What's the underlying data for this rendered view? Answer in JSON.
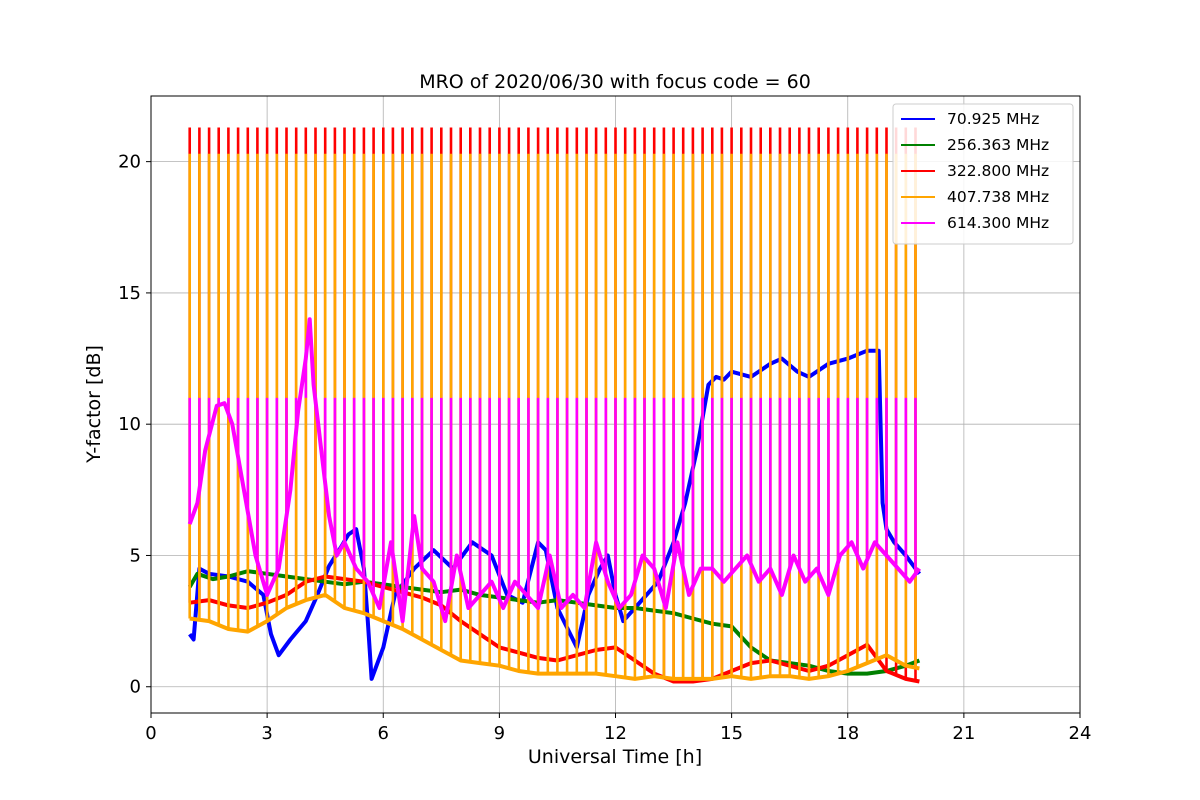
{
  "chart_data": {
    "type": "line",
    "title": "MRO of 2020/06/30 with focus code = 60",
    "xlabel": "Universal Time [h]",
    "ylabel": "Y-factor [dB]",
    "xlim": [
      0,
      24
    ],
    "ylim": [
      -1,
      22.5
    ],
    "xticks": [
      0,
      3,
      6,
      9,
      12,
      15,
      18,
      21,
      24
    ],
    "yticks": [
      0,
      5,
      10,
      15,
      20
    ],
    "grid": true,
    "legend_position": "top-right",
    "cal_spikes": {
      "start": 1.0,
      "period": 0.25,
      "end": 19.85
    },
    "series": [
      {
        "name": "70.925 MHz",
        "color": "#0000ff",
        "spike_top": null,
        "x": [
          1.0,
          1.1,
          1.25,
          1.5,
          2.0,
          2.5,
          2.9,
          3.1,
          3.3,
          3.6,
          4.0,
          4.3,
          4.6,
          4.9,
          5.1,
          5.3,
          5.5,
          5.6,
          5.7,
          5.8,
          6.0,
          6.3,
          6.8,
          7.3,
          7.8,
          8.3,
          8.8,
          9.2,
          9.6,
          10.0,
          10.2,
          10.5,
          11.0,
          11.3,
          11.6,
          11.8,
          12.0,
          12.2,
          12.5,
          12.8,
          13.1,
          13.5,
          13.8,
          14.1,
          14.4,
          14.6,
          14.8,
          15.0,
          15.5,
          16.0,
          16.3,
          16.7,
          17.0,
          17.5,
          18.0,
          18.5,
          18.8,
          18.9,
          19.0,
          19.2,
          19.5,
          19.85
        ],
        "y": [
          2.0,
          1.8,
          4.5,
          4.3,
          4.2,
          4.0,
          3.5,
          2.0,
          1.2,
          1.8,
          2.5,
          3.5,
          4.6,
          5.3,
          5.8,
          6.0,
          4.5,
          2.5,
          0.3,
          0.7,
          1.5,
          3.5,
          4.5,
          5.2,
          4.5,
          5.5,
          5.0,
          3.5,
          3.2,
          5.5,
          5.2,
          3.0,
          1.5,
          3.5,
          4.5,
          5.0,
          3.5,
          2.5,
          3.0,
          3.5,
          4.0,
          5.5,
          7.0,
          9.0,
          11.5,
          11.8,
          11.7,
          12.0,
          11.8,
          12.3,
          12.5,
          12.0,
          11.8,
          12.3,
          12.5,
          12.8,
          12.8,
          7.0,
          6.0,
          5.5,
          5.0,
          4.3
        ]
      },
      {
        "name": "256.363 MHz",
        "color": "#008000",
        "spike_top": null,
        "x": [
          1.0,
          1.2,
          1.6,
          2.0,
          2.5,
          3.0,
          3.5,
          4.0,
          4.5,
          5.0,
          5.5,
          6.0,
          6.5,
          7.0,
          7.5,
          8.0,
          8.5,
          9.0,
          9.5,
          10.0,
          10.5,
          11.0,
          11.5,
          12.0,
          12.5,
          13.0,
          13.5,
          14.0,
          14.5,
          15.0,
          15.5,
          16.0,
          16.5,
          17.0,
          17.5,
          18.0,
          18.5,
          19.0,
          19.5,
          19.85
        ],
        "y": [
          3.8,
          4.3,
          4.1,
          4.2,
          4.4,
          4.3,
          4.2,
          4.1,
          4.0,
          3.9,
          4.0,
          3.9,
          3.8,
          3.7,
          3.6,
          3.7,
          3.5,
          3.4,
          3.3,
          3.2,
          3.3,
          3.2,
          3.1,
          3.0,
          3.0,
          2.9,
          2.8,
          2.6,
          2.4,
          2.3,
          1.5,
          1.0,
          0.9,
          0.8,
          0.6,
          0.5,
          0.5,
          0.6,
          0.8,
          1.0
        ]
      },
      {
        "name": "322.800 MHz",
        "color": "#ff0000",
        "spike_top": 21.3,
        "x": [
          1.0,
          1.5,
          2.0,
          2.5,
          3.0,
          3.5,
          4.0,
          4.5,
          5.0,
          5.5,
          6.0,
          6.5,
          7.0,
          7.5,
          8.0,
          8.5,
          9.0,
          9.5,
          10.0,
          10.5,
          11.0,
          11.5,
          12.0,
          12.5,
          13.0,
          13.5,
          14.0,
          14.5,
          15.0,
          15.5,
          16.0,
          16.5,
          17.0,
          17.5,
          18.0,
          18.5,
          19.0,
          19.5,
          19.85
        ],
        "y": [
          3.2,
          3.3,
          3.1,
          3.0,
          3.2,
          3.5,
          4.0,
          4.2,
          4.1,
          4.0,
          3.8,
          3.6,
          3.4,
          3.1,
          2.5,
          2.0,
          1.5,
          1.3,
          1.1,
          1.0,
          1.2,
          1.4,
          1.5,
          1.0,
          0.5,
          0.2,
          0.2,
          0.3,
          0.6,
          0.9,
          1.0,
          0.8,
          0.6,
          0.8,
          1.2,
          1.6,
          0.6,
          0.3,
          0.2
        ]
      },
      {
        "name": "407.738 MHz",
        "color": "#ffa500",
        "spike_top": 20.3,
        "x": [
          1.0,
          1.5,
          2.0,
          2.5,
          3.0,
          3.5,
          4.0,
          4.5,
          5.0,
          5.5,
          6.0,
          6.5,
          7.0,
          7.5,
          8.0,
          8.5,
          9.0,
          9.5,
          10.0,
          10.5,
          11.0,
          11.5,
          12.0,
          12.5,
          13.0,
          13.5,
          14.0,
          14.5,
          15.0,
          15.5,
          16.0,
          16.5,
          17.0,
          17.5,
          18.0,
          18.5,
          19.0,
          19.5,
          19.85
        ],
        "y": [
          2.6,
          2.5,
          2.2,
          2.1,
          2.5,
          3.0,
          3.3,
          3.5,
          3.0,
          2.8,
          2.5,
          2.2,
          1.8,
          1.4,
          1.0,
          0.9,
          0.8,
          0.6,
          0.5,
          0.5,
          0.5,
          0.5,
          0.4,
          0.3,
          0.4,
          0.3,
          0.3,
          0.3,
          0.4,
          0.3,
          0.4,
          0.4,
          0.3,
          0.4,
          0.6,
          0.9,
          1.2,
          0.8,
          0.7
        ]
      },
      {
        "name": "614.300 MHz",
        "color": "#ff00ff",
        "spike_top": 11.0,
        "x": [
          1.0,
          1.2,
          1.4,
          1.7,
          1.9,
          2.1,
          2.4,
          2.7,
          3.0,
          3.3,
          3.6,
          3.8,
          4.0,
          4.1,
          4.2,
          4.4,
          4.6,
          4.8,
          5.0,
          5.3,
          5.6,
          5.9,
          6.2,
          6.5,
          6.8,
          7.0,
          7.3,
          7.6,
          7.9,
          8.2,
          8.5,
          8.8,
          9.1,
          9.4,
          9.7,
          10.0,
          10.3,
          10.6,
          10.9,
          11.2,
          11.5,
          11.8,
          12.1,
          12.4,
          12.7,
          13.0,
          13.3,
          13.6,
          13.9,
          14.2,
          14.5,
          14.8,
          15.1,
          15.4,
          15.7,
          16.0,
          16.3,
          16.6,
          16.9,
          17.2,
          17.5,
          17.8,
          18.1,
          18.4,
          18.7,
          19.0,
          19.3,
          19.6,
          19.85
        ],
        "y": [
          6.2,
          7.0,
          9.0,
          10.7,
          10.8,
          10.0,
          7.5,
          5.0,
          3.5,
          4.5,
          7.5,
          10.5,
          12.5,
          14.0,
          11.5,
          9.0,
          6.5,
          5.0,
          5.5,
          4.5,
          4.0,
          3.0,
          5.5,
          2.5,
          6.5,
          4.5,
          4.0,
          2.5,
          5.0,
          3.0,
          3.5,
          4.0,
          3.0,
          4.0,
          3.5,
          3.0,
          5.0,
          3.0,
          3.5,
          3.0,
          5.5,
          4.0,
          3.0,
          3.5,
          5.0,
          4.5,
          3.0,
          5.5,
          3.5,
          4.5,
          4.5,
          4.0,
          4.5,
          5.0,
          4.0,
          4.5,
          3.5,
          5.0,
          4.0,
          4.5,
          3.5,
          5.0,
          5.5,
          4.5,
          5.5,
          5.0,
          4.5,
          4.0,
          4.5
        ]
      }
    ]
  }
}
